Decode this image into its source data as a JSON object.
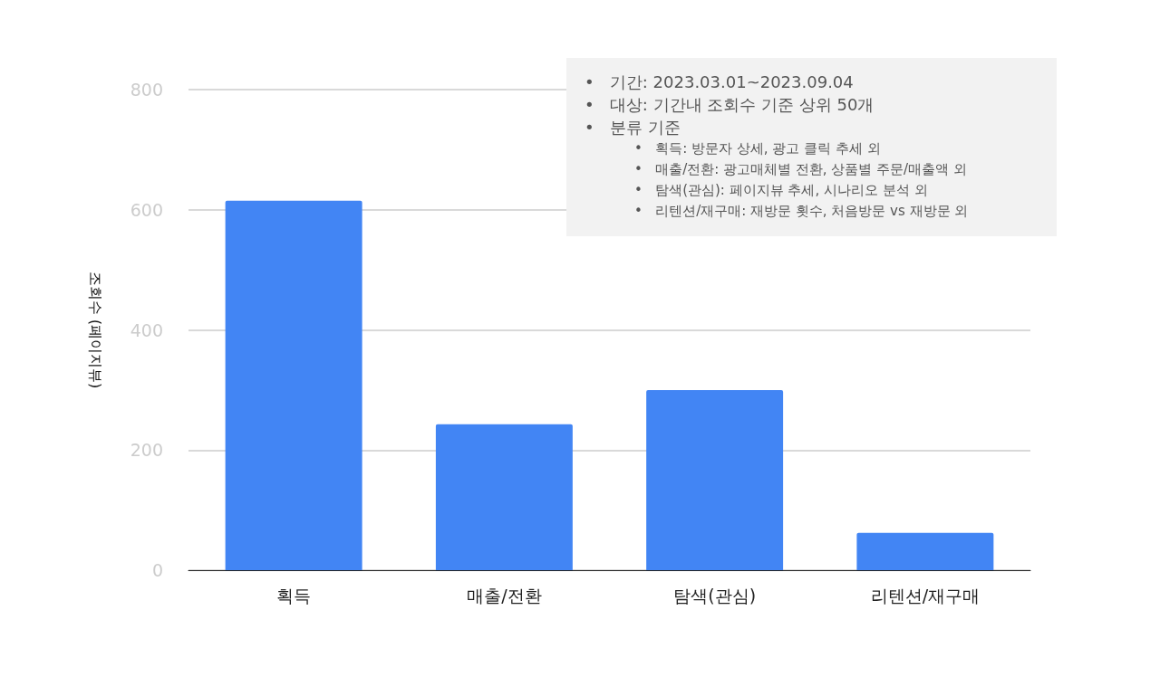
{
  "chart_data": {
    "type": "bar",
    "ylabel": "조회수 (페이지뷰)",
    "categories": [
      "획득",
      "매출/전환",
      "탐색(관심)",
      "리텐션/재구매"
    ],
    "values": [
      615,
      243,
      300,
      62
    ],
    "color": "#4285f4",
    "ylim": [
      0,
      800
    ],
    "yticks": [
      0,
      200,
      400,
      600,
      800
    ],
    "grid": "y",
    "annotations": [
      "•   기간: 2023.03.01~2023.09.04",
      "•   대상: 기간내 조회수 기준 상위 50개",
      "•   분류 기준",
      "•   획득: 방문자 상세, 광고 클릭 추세 외",
      "•   매출/전환: 광고매체별 전환, 상품별 주문/매출액 외",
      "•   탐색(관심): 페이지뷰 추세, 시나리오 분석 외",
      "•   리텐션/재구매: 재방문 횟수, 처음방문 vs 재방문 외"
    ]
  }
}
